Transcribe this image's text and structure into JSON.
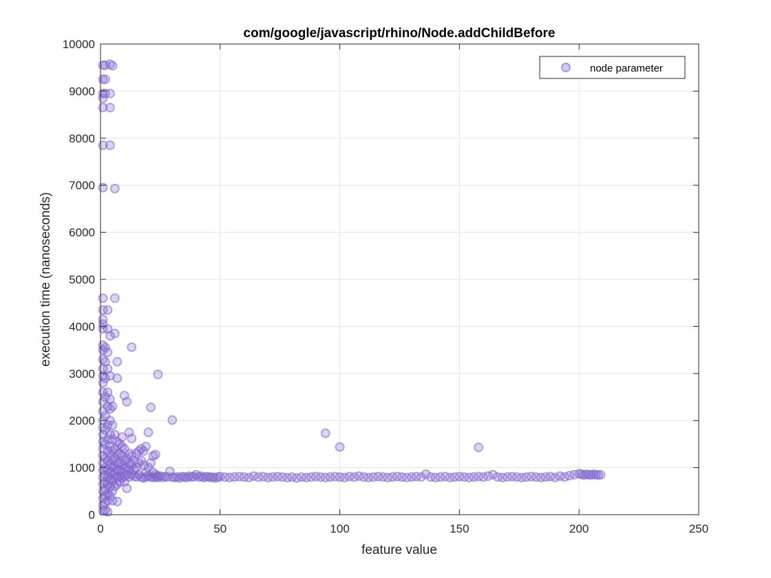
{
  "chart_data": {
    "type": "scatter",
    "title": "com/google/javascript/rhino/Node.addChildBefore",
    "xlabel": "feature value",
    "ylabel": "execution time (nanoseconds)",
    "xlim": [
      0,
      250
    ],
    "ylim": [
      0,
      10000
    ],
    "xticks": [
      0,
      50,
      100,
      150,
      200,
      250
    ],
    "yticks": [
      0,
      1000,
      2000,
      3000,
      4000,
      5000,
      6000,
      7000,
      8000,
      9000,
      10000
    ],
    "grid": true,
    "legend_position": "top-right",
    "marker_color": "#8066cc",
    "series": [
      {
        "name": "node parameter",
        "points": [
          [
            1,
            9550
          ],
          [
            1,
            9250
          ],
          [
            1,
            8950
          ],
          [
            1,
            8850
          ],
          [
            1,
            8650
          ],
          [
            1,
            7850
          ],
          [
            1,
            6950
          ],
          [
            1,
            4600
          ],
          [
            1,
            4350
          ],
          [
            1,
            4150
          ],
          [
            1,
            4050
          ],
          [
            1,
            3950
          ],
          [
            1,
            3600
          ],
          [
            1,
            3500
          ],
          [
            1,
            3300
          ],
          [
            1,
            3100
          ],
          [
            1,
            2950
          ],
          [
            1,
            2800
          ],
          [
            1,
            2600
          ],
          [
            1,
            2400
          ],
          [
            1,
            2200
          ],
          [
            1,
            2000
          ],
          [
            1,
            1850
          ],
          [
            1,
            1700
          ],
          [
            1,
            1550
          ],
          [
            1,
            1400
          ],
          [
            1,
            1250
          ],
          [
            1,
            1100
          ],
          [
            1,
            950
          ],
          [
            1,
            800
          ],
          [
            1,
            650
          ],
          [
            1,
            500
          ],
          [
            1,
            350
          ],
          [
            1,
            200
          ],
          [
            1,
            80
          ],
          [
            2,
            9550
          ],
          [
            2,
            9250
          ],
          [
            2,
            8950
          ],
          [
            2,
            3550
          ],
          [
            2,
            3250
          ],
          [
            2,
            2900
          ],
          [
            2,
            2500
          ],
          [
            2,
            2100
          ],
          [
            2,
            1800
          ],
          [
            2,
            1500
          ],
          [
            2,
            1200
          ],
          [
            2,
            1000
          ],
          [
            2,
            850
          ],
          [
            2,
            700
          ],
          [
            2,
            550
          ],
          [
            2,
            400
          ],
          [
            2,
            250
          ],
          [
            2,
            100
          ],
          [
            3,
            4350
          ],
          [
            3,
            3950
          ],
          [
            3,
            3450
          ],
          [
            3,
            3100
          ],
          [
            3,
            2600
          ],
          [
            3,
            2300
          ],
          [
            3,
            1900
          ],
          [
            3,
            1600
          ],
          [
            3,
            1350
          ],
          [
            3,
            1150
          ],
          [
            3,
            950
          ],
          [
            3,
            800
          ],
          [
            3,
            650
          ],
          [
            3,
            450
          ],
          [
            3,
            300
          ],
          [
            3,
            60
          ],
          [
            4,
            9570
          ],
          [
            4,
            8950
          ],
          [
            4,
            8650
          ],
          [
            4,
            7850
          ],
          [
            4,
            3800
          ],
          [
            4,
            2950
          ],
          [
            4,
            2450
          ],
          [
            4,
            2250
          ],
          [
            4,
            2000
          ],
          [
            4,
            1700
          ],
          [
            4,
            1450
          ],
          [
            4,
            1250
          ],
          [
            4,
            1050
          ],
          [
            4,
            900
          ],
          [
            4,
            750
          ],
          [
            4,
            600
          ],
          [
            4,
            400
          ],
          [
            5,
            9540
          ],
          [
            5,
            2300
          ],
          [
            5,
            1900
          ],
          [
            5,
            1600
          ],
          [
            5,
            1350
          ],
          [
            5,
            1150
          ],
          [
            5,
            1000
          ],
          [
            5,
            850
          ],
          [
            5,
            700
          ],
          [
            5,
            500
          ],
          [
            5,
            300
          ],
          [
            6,
            6930
          ],
          [
            6,
            4600
          ],
          [
            6,
            3850
          ],
          [
            6,
            1700
          ],
          [
            6,
            1400
          ],
          [
            6,
            1200
          ],
          [
            6,
            1050
          ],
          [
            6,
            900
          ],
          [
            6,
            780
          ],
          [
            6,
            600
          ],
          [
            7,
            3250
          ],
          [
            7,
            2900
          ],
          [
            7,
            1550
          ],
          [
            7,
            1300
          ],
          [
            7,
            1100
          ],
          [
            7,
            950
          ],
          [
            7,
            800
          ],
          [
            7,
            650
          ],
          [
            7,
            280
          ],
          [
            8,
            1500
          ],
          [
            8,
            1300
          ],
          [
            8,
            1100
          ],
          [
            8,
            950
          ],
          [
            8,
            820
          ],
          [
            8,
            700
          ],
          [
            9,
            1650
          ],
          [
            9,
            1450
          ],
          [
            9,
            1250
          ],
          [
            9,
            1050
          ],
          [
            9,
            900
          ],
          [
            9,
            780
          ],
          [
            10,
            2530
          ],
          [
            10,
            1400
          ],
          [
            10,
            1150
          ],
          [
            10,
            980
          ],
          [
            10,
            820
          ],
          [
            10,
            700
          ],
          [
            11,
            2400
          ],
          [
            11,
            1200
          ],
          [
            11,
            1000
          ],
          [
            11,
            850
          ],
          [
            11,
            560
          ],
          [
            12,
            1750
          ],
          [
            12,
            1300
          ],
          [
            12,
            1100
          ],
          [
            12,
            950
          ],
          [
            12,
            800
          ],
          [
            13,
            3560
          ],
          [
            13,
            1620
          ],
          [
            13,
            1250
          ],
          [
            13,
            1050
          ],
          [
            13,
            850
          ],
          [
            14,
            1150
          ],
          [
            14,
            950
          ],
          [
            14,
            820
          ],
          [
            15,
            1300
          ],
          [
            15,
            1000
          ],
          [
            15,
            800
          ],
          [
            16,
            1350
          ],
          [
            16,
            1100
          ],
          [
            16,
            850
          ],
          [
            17,
            1400
          ],
          [
            17,
            1150
          ],
          [
            17,
            800
          ],
          [
            18,
            1350
          ],
          [
            18,
            1050
          ],
          [
            18,
            780
          ],
          [
            19,
            1450
          ],
          [
            19,
            900
          ],
          [
            19,
            800
          ],
          [
            20,
            1750
          ],
          [
            20,
            1000
          ],
          [
            20,
            820
          ],
          [
            21,
            2280
          ],
          [
            21,
            1100
          ],
          [
            21,
            800
          ],
          [
            22,
            1250
          ],
          [
            22,
            900
          ],
          [
            22,
            790
          ],
          [
            23,
            1280
          ],
          [
            23,
            850
          ],
          [
            23,
            800
          ],
          [
            24,
            2980
          ],
          [
            24,
            820
          ],
          [
            24,
            790
          ],
          [
            25,
            820
          ],
          [
            26,
            790
          ],
          [
            27,
            810
          ],
          [
            28,
            800
          ],
          [
            29,
            920
          ],
          [
            30,
            2010
          ],
          [
            30,
            800
          ],
          [
            31,
            790
          ],
          [
            32,
            800
          ],
          [
            33,
            780
          ],
          [
            34,
            810
          ],
          [
            35,
            800
          ],
          [
            36,
            790
          ],
          [
            37,
            820
          ],
          [
            38,
            800
          ],
          [
            39,
            810
          ],
          [
            40,
            850
          ],
          [
            41,
            800
          ],
          [
            42,
            820
          ],
          [
            43,
            790
          ],
          [
            44,
            800
          ],
          [
            45,
            810
          ],
          [
            46,
            790
          ],
          [
            47,
            800
          ],
          [
            48,
            780
          ],
          [
            49,
            800
          ],
          [
            50,
            810
          ],
          [
            52,
            800
          ],
          [
            54,
            790
          ],
          [
            56,
            800
          ],
          [
            58,
            810
          ],
          [
            60,
            800
          ],
          [
            62,
            790
          ],
          [
            64,
            820
          ],
          [
            66,
            800
          ],
          [
            68,
            810
          ],
          [
            70,
            790
          ],
          [
            72,
            800
          ],
          [
            74,
            810
          ],
          [
            76,
            800
          ],
          [
            78,
            790
          ],
          [
            80,
            800
          ],
          [
            82,
            780
          ],
          [
            84,
            800
          ],
          [
            86,
            790
          ],
          [
            88,
            800
          ],
          [
            90,
            810
          ],
          [
            92,
            800
          ],
          [
            94,
            1730
          ],
          [
            94,
            790
          ],
          [
            96,
            800
          ],
          [
            98,
            810
          ],
          [
            100,
            1440
          ],
          [
            100,
            800
          ],
          [
            102,
            790
          ],
          [
            104,
            810
          ],
          [
            106,
            800
          ],
          [
            108,
            820
          ],
          [
            110,
            800
          ],
          [
            112,
            790
          ],
          [
            114,
            800
          ],
          [
            116,
            810
          ],
          [
            118,
            800
          ],
          [
            120,
            790
          ],
          [
            122,
            800
          ],
          [
            124,
            810
          ],
          [
            126,
            800
          ],
          [
            128,
            790
          ],
          [
            130,
            800
          ],
          [
            132,
            810
          ],
          [
            134,
            800
          ],
          [
            136,
            860
          ],
          [
            138,
            800
          ],
          [
            140,
            790
          ],
          [
            142,
            800
          ],
          [
            144,
            810
          ],
          [
            146,
            790
          ],
          [
            148,
            800
          ],
          [
            150,
            810
          ],
          [
            152,
            800
          ],
          [
            154,
            790
          ],
          [
            156,
            800
          ],
          [
            158,
            1430
          ],
          [
            158,
            810
          ],
          [
            160,
            800
          ],
          [
            162,
            820
          ],
          [
            164,
            850
          ],
          [
            166,
            800
          ],
          [
            168,
            790
          ],
          [
            170,
            800
          ],
          [
            172,
            810
          ],
          [
            174,
            800
          ],
          [
            176,
            790
          ],
          [
            178,
            800
          ],
          [
            180,
            810
          ],
          [
            182,
            800
          ],
          [
            184,
            790
          ],
          [
            186,
            800
          ],
          [
            188,
            810
          ],
          [
            190,
            790
          ],
          [
            192,
            820
          ],
          [
            194,
            800
          ],
          [
            196,
            830
          ],
          [
            198,
            850
          ],
          [
            200,
            870
          ],
          [
            201,
            860
          ],
          [
            202,
            840
          ],
          [
            203,
            860
          ],
          [
            204,
            850
          ],
          [
            205,
            840
          ],
          [
            206,
            860
          ],
          [
            207,
            850
          ],
          [
            208,
            840
          ],
          [
            209,
            850
          ]
        ]
      }
    ]
  }
}
